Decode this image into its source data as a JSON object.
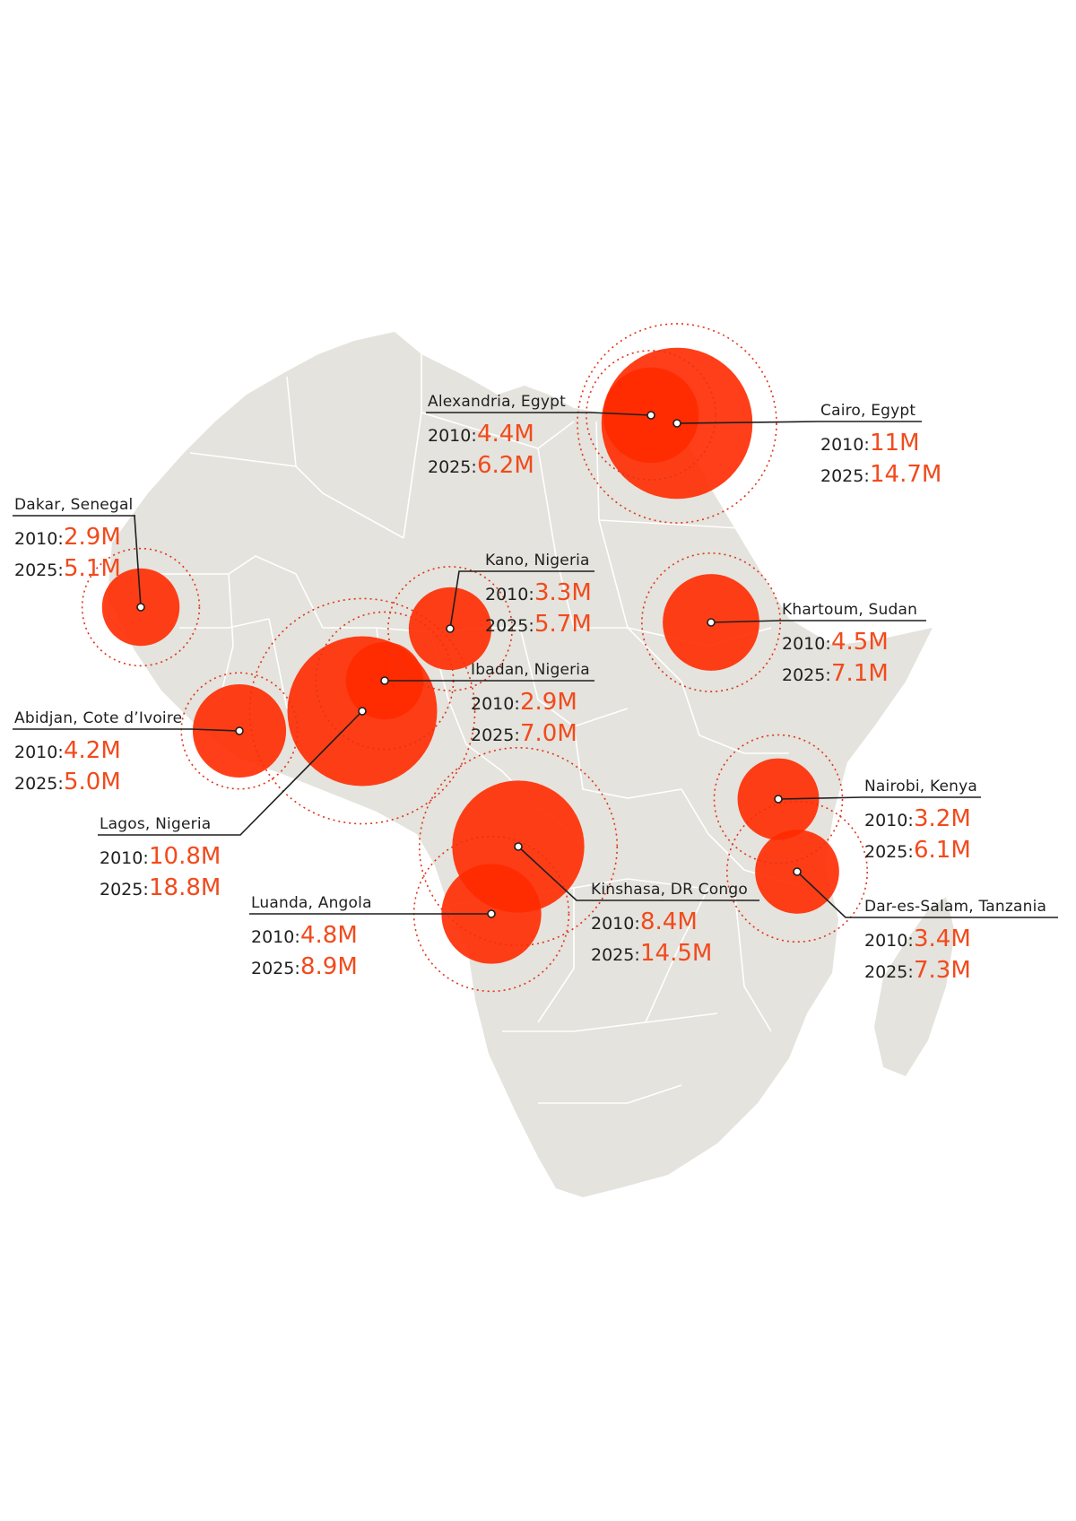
{
  "colors": {
    "land": "#e4e3dd",
    "border": "#ffffff",
    "bubble": "#ff2a00",
    "value": "#f24a1c",
    "leader": "#1f1f1f",
    "ring": "#e0341a"
  },
  "chart_data": {
    "type": "bubble-map",
    "title": "",
    "unit": "million inhabitants",
    "years": [
      "2010",
      "2025"
    ],
    "cities": [
      {
        "key": "cairo",
        "name": "Cairo, Egypt",
        "pop_2010": 11.0,
        "pop_2025": 14.7,
        "label_2010": "11M",
        "label_2025": "14.7M"
      },
      {
        "key": "alexandria",
        "name": "Alexandria, Egypt",
        "pop_2010": 4.4,
        "pop_2025": 6.2,
        "label_2010": "4.4M",
        "label_2025": "6.2M"
      },
      {
        "key": "dakar",
        "name": "Dakar, Senegal",
        "pop_2010": 2.9,
        "pop_2025": 5.1,
        "label_2010": "2.9M",
        "label_2025": "5.1M"
      },
      {
        "key": "kano",
        "name": "Kano, Nigeria",
        "pop_2010": 3.3,
        "pop_2025": 5.7,
        "label_2010": "3.3M",
        "label_2025": "5.7M"
      },
      {
        "key": "khartoum",
        "name": "Khartoum, Sudan",
        "pop_2010": 4.5,
        "pop_2025": 7.1,
        "label_2010": "4.5M",
        "label_2025": "7.1M"
      },
      {
        "key": "ibadan",
        "name": "Ibadan, Nigeria",
        "pop_2010": 2.9,
        "pop_2025": 7.0,
        "label_2010": "2.9M",
        "label_2025": "7.0M"
      },
      {
        "key": "abidjan",
        "name": "Abidjan, Cote d’Ivoire",
        "pop_2010": 4.2,
        "pop_2025": 5.0,
        "label_2010": "4.2M",
        "label_2025": "5.0M"
      },
      {
        "key": "lagos",
        "name": "Lagos, Nigeria",
        "pop_2010": 10.8,
        "pop_2025": 18.8,
        "label_2010": "10.8M",
        "label_2025": "18.8M"
      },
      {
        "key": "nairobi",
        "name": "Nairobi, Kenya",
        "pop_2010": 3.2,
        "pop_2025": 6.1,
        "label_2010": "3.2M",
        "label_2025": "6.1M"
      },
      {
        "key": "kinshasa",
        "name": "Kinshasa, DR Congo",
        "pop_2010": 8.4,
        "pop_2025": 14.5,
        "label_2010": "8.4M",
        "label_2025": "14.5M"
      },
      {
        "key": "luanda",
        "name": "Luanda, Angola",
        "pop_2010": 4.8,
        "pop_2025": 8.9,
        "label_2010": "4.8M",
        "label_2025": "8.9M"
      },
      {
        "key": "dares",
        "name": "Dar-es-Salam, Tanzania",
        "pop_2010": 3.4,
        "pop_2025": 7.3,
        "label_2010": "3.4M",
        "label_2025": "7.3M"
      }
    ]
  }
}
